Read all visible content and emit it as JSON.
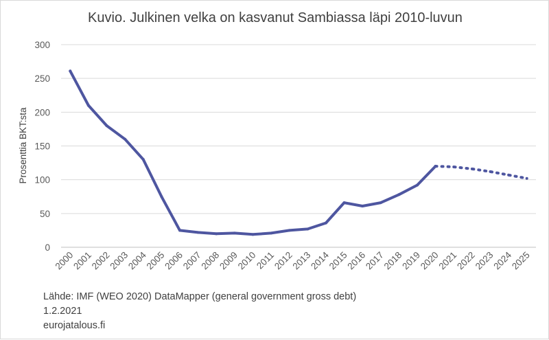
{
  "chart_data": {
    "type": "line",
    "title": "Kuvio. Julkinen velka on kasvanut Sambiassa läpi 2010-luvun",
    "ylabel": "Prosenttia BKT:sta",
    "xlabel": "",
    "ylim": [
      0,
      300
    ],
    "yticks": [
      "0",
      "50",
      "100",
      "150",
      "200",
      "250",
      "300"
    ],
    "grid": true,
    "legend": "none",
    "line_color": "#4e56a0",
    "categories": [
      "2000",
      "2001",
      "2002",
      "2003",
      "2004",
      "2005",
      "2006",
      "2007",
      "2008",
      "2009",
      "2010",
      "2011",
      "2012",
      "2013",
      "2014",
      "2015",
      "2016",
      "2017",
      "2018",
      "2019",
      "2020",
      "2021",
      "2022",
      "2023",
      "2024",
      "2025"
    ],
    "series": [
      {
        "style": "solid",
        "x": [
          "2000",
          "2001",
          "2002",
          "2003",
          "2004",
          "2005",
          "2006",
          "2007",
          "2008",
          "2009",
          "2010",
          "2011",
          "2012",
          "2013",
          "2014",
          "2015",
          "2016",
          "2017",
          "2018",
          "2019",
          "2020"
        ],
        "values": [
          261,
          210,
          180,
          160,
          130,
          75,
          25,
          22,
          20,
          21,
          19,
          21,
          25,
          27,
          36,
          66,
          61,
          66,
          78,
          92,
          120
        ]
      },
      {
        "style": "dotted",
        "x": [
          "2020",
          "2021",
          "2022",
          "2023",
          "2024",
          "2025"
        ],
        "values": [
          120,
          119,
          116,
          112,
          107,
          102
        ]
      }
    ]
  },
  "footer": {
    "source": "Lähde: IMF (WEO 2020) DataMapper (general government gross debt)",
    "date": "1.2.2021",
    "site": "eurojatalous.fi"
  }
}
